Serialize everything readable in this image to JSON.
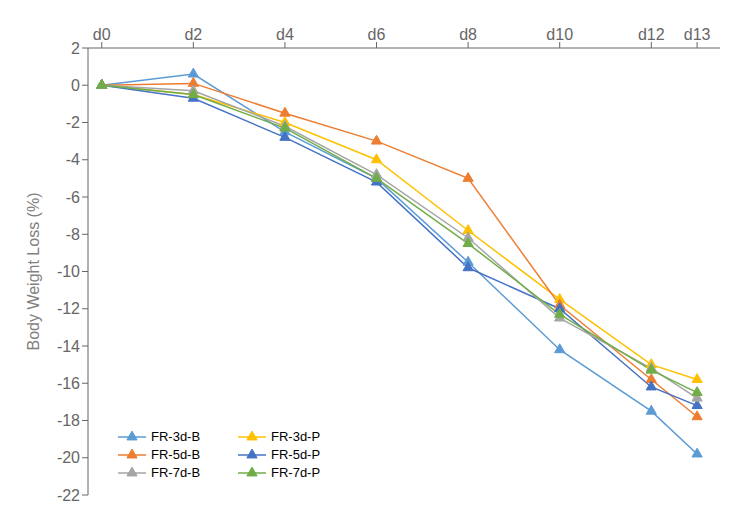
{
  "chart_data": {
    "type": "line",
    "x": [
      0,
      2,
      4,
      6,
      8,
      10,
      12,
      13
    ],
    "xlim": [
      -0.3,
      13.5
    ],
    "xticks": [
      {
        "value": 0,
        "label": "d0"
      },
      {
        "value": 2,
        "label": "d2"
      },
      {
        "value": 4,
        "label": "d4"
      },
      {
        "value": 6,
        "label": "d6"
      },
      {
        "value": 8,
        "label": "d8"
      },
      {
        "value": 10,
        "label": "d10"
      },
      {
        "value": 12,
        "label": "d12"
      },
      {
        "value": 13,
        "label": "d13"
      }
    ],
    "ylabel": "Body Weight Loss (%)",
    "ylim": [
      -22,
      2
    ],
    "yticks": [
      2,
      0,
      -2,
      -4,
      -6,
      -8,
      -10,
      -12,
      -14,
      -16,
      -18,
      -20,
      -22
    ],
    "grid": false,
    "legend": "lower left",
    "series": [
      {
        "name": "FR-3d-B",
        "color": "#5B9BD5",
        "marker": "triangle",
        "values": [
          0,
          0.6,
          -2.5,
          -5.0,
          -9.5,
          -14.2,
          -17.5,
          -19.8
        ]
      },
      {
        "name": "FR-3d-P",
        "color": "#FFC000",
        "marker": "triangle",
        "values": [
          0,
          -0.5,
          -2.0,
          -4.0,
          -7.8,
          -11.5,
          -15.0,
          -15.8
        ]
      },
      {
        "name": "FR-5d-B",
        "color": "#ED7D31",
        "marker": "triangle",
        "values": [
          0,
          0.1,
          -1.5,
          -3.0,
          -5.0,
          -11.8,
          -15.8,
          -17.8
        ]
      },
      {
        "name": "FR-5d-P",
        "color": "#4472C4",
        "marker": "triangle",
        "values": [
          0,
          -0.7,
          -2.8,
          -5.2,
          -9.8,
          -12.0,
          -16.2,
          -17.2
        ]
      },
      {
        "name": "FR-7d-B",
        "color": "#A5A5A5",
        "marker": "triangle",
        "values": [
          0,
          -0.3,
          -2.2,
          -4.8,
          -8.2,
          -12.5,
          -15.2,
          -16.8
        ]
      },
      {
        "name": "FR-7d-P",
        "color": "#70AD47",
        "marker": "triangle",
        "values": [
          0,
          -0.5,
          -2.3,
          -5.0,
          -8.5,
          -12.3,
          -15.3,
          -16.5
        ]
      }
    ]
  }
}
